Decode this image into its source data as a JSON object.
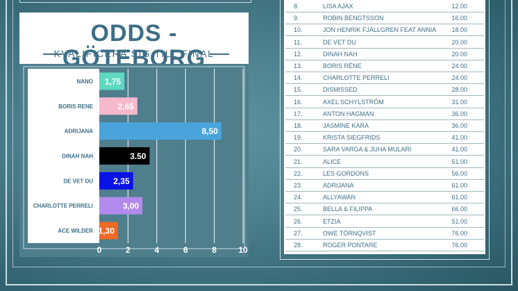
{
  "title": "ODDS - GÖTEBORG",
  "subtitle": "KVALIFICERA SIG TILL FINAL",
  "chart_data": {
    "type": "bar",
    "orientation": "horizontal",
    "categories": [
      "NANO",
      "BORIS RENE",
      "ADRIJANA",
      "DINAH NAH",
      "DE VET DU",
      "CHARLOTTE PERRELI",
      "ACE WILDER"
    ],
    "values": [
      1.75,
      2.65,
      8.5,
      3.5,
      2.35,
      3.0,
      1.3
    ],
    "value_labels": [
      "1,75",
      "2,65",
      "8,50",
      "3.50",
      "2,35",
      "3,00",
      "1,30"
    ],
    "colors": [
      "#5fd8c0",
      "#f6b8cc",
      "#4aa4dc",
      "#000000",
      "#0a13e6",
      "#b289ec",
      "#ef6a26"
    ],
    "xlim": [
      0,
      10
    ],
    "xticks": [
      "0",
      "2",
      "4",
      "6",
      "8",
      "10"
    ],
    "grid": true
  },
  "odds_table": [
    {
      "num": "8.",
      "name": "LISA AJAX",
      "odds": "12.00"
    },
    {
      "num": "9.",
      "name": "ROBIN BENGTSSON",
      "odds": "16.00"
    },
    {
      "num": "10.",
      "name": "JON HENRIK FJÄLLGREN FEAT ANNIA",
      "odds": "18.00"
    },
    {
      "num": "11.",
      "name": "DE VET DU",
      "odds": "20.00"
    },
    {
      "num": "12.",
      "name": "DINAH NAH",
      "odds": "20.00"
    },
    {
      "num": "13.",
      "name": "BORIS RÈNE",
      "odds": "24.00"
    },
    {
      "num": "14.",
      "name": "CHARLOTTE PERRELI",
      "odds": "24.00"
    },
    {
      "num": "15.",
      "name": "DISMISSED",
      "odds": "28.00"
    },
    {
      "num": "16.",
      "name": "AXEL SCHYLSTRÖM",
      "odds": "31.00"
    },
    {
      "num": "17.",
      "name": "ANTON HAGMAN",
      "odds": "36.00"
    },
    {
      "num": "18.",
      "name": "JASMINE KARA",
      "odds": "36.00"
    },
    {
      "num": "19.",
      "name": "KRISTA SIEGFRIDS",
      "odds": "41.00"
    },
    {
      "num": "20.",
      "name": "SARA VARGA & JUHA MULARI",
      "odds": "41.00"
    },
    {
      "num": "21.",
      "name": "ALICE",
      "odds": "51.00"
    },
    {
      "num": "22.",
      "name": "LES GORDONS",
      "odds": "56.00"
    },
    {
      "num": "23.",
      "name": "ADRIJANA",
      "odds": "61.00"
    },
    {
      "num": "24.",
      "name": "ALLYAWAN",
      "odds": "61.00"
    },
    {
      "num": "25.",
      "name": "BELLA & FILIPPA",
      "odds": "66.00"
    },
    {
      "num": "26.",
      "name": "ETZIA",
      "odds": "51.00"
    },
    {
      "num": "27.",
      "name": "OWE TÖRNQVIST",
      "odds": "76.00"
    },
    {
      "num": "28.",
      "name": "ROGER PONTARE",
      "odds": "76.00"
    }
  ]
}
